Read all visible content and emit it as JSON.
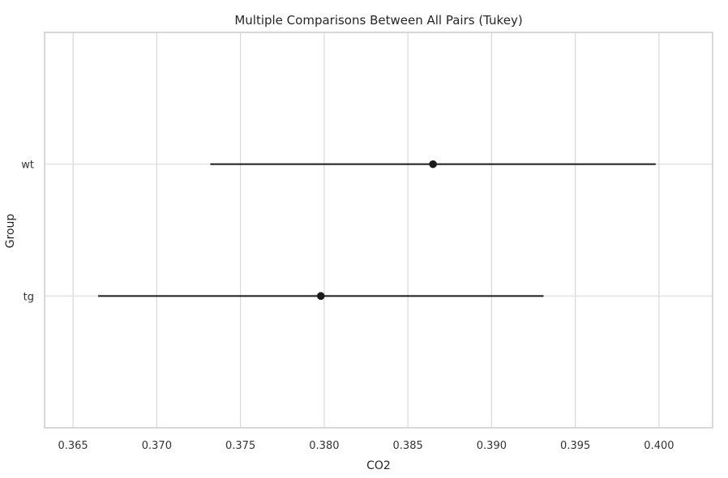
{
  "chart_data": {
    "type": "scatter",
    "subtype": "interval_plot",
    "title": "Multiple Comparisons Between All Pairs (Tukey)",
    "xlabel": "CO2",
    "ylabel": "Group",
    "xlim": [
      0.3633,
      0.4032
    ],
    "x_ticks": [
      0.365,
      0.37,
      0.375,
      0.38,
      0.385,
      0.39,
      0.395,
      0.4
    ],
    "x_tick_labels": [
      "0.365",
      "0.370",
      "0.375",
      "0.380",
      "0.385",
      "0.390",
      "0.395",
      "0.400"
    ],
    "categories": [
      "wt",
      "tg"
    ],
    "series": [
      {
        "points": [
          {
            "group": "wt",
            "mean": 0.3865,
            "lower": 0.3732,
            "upper": 0.3998
          },
          {
            "group": "tg",
            "mean": 0.3798,
            "lower": 0.3665,
            "upper": 0.3931
          }
        ]
      }
    ],
    "grid": true,
    "colors": {
      "marker": "#1a1a1a",
      "grid": "#d9d9d9",
      "frame": "#cccccc"
    }
  }
}
